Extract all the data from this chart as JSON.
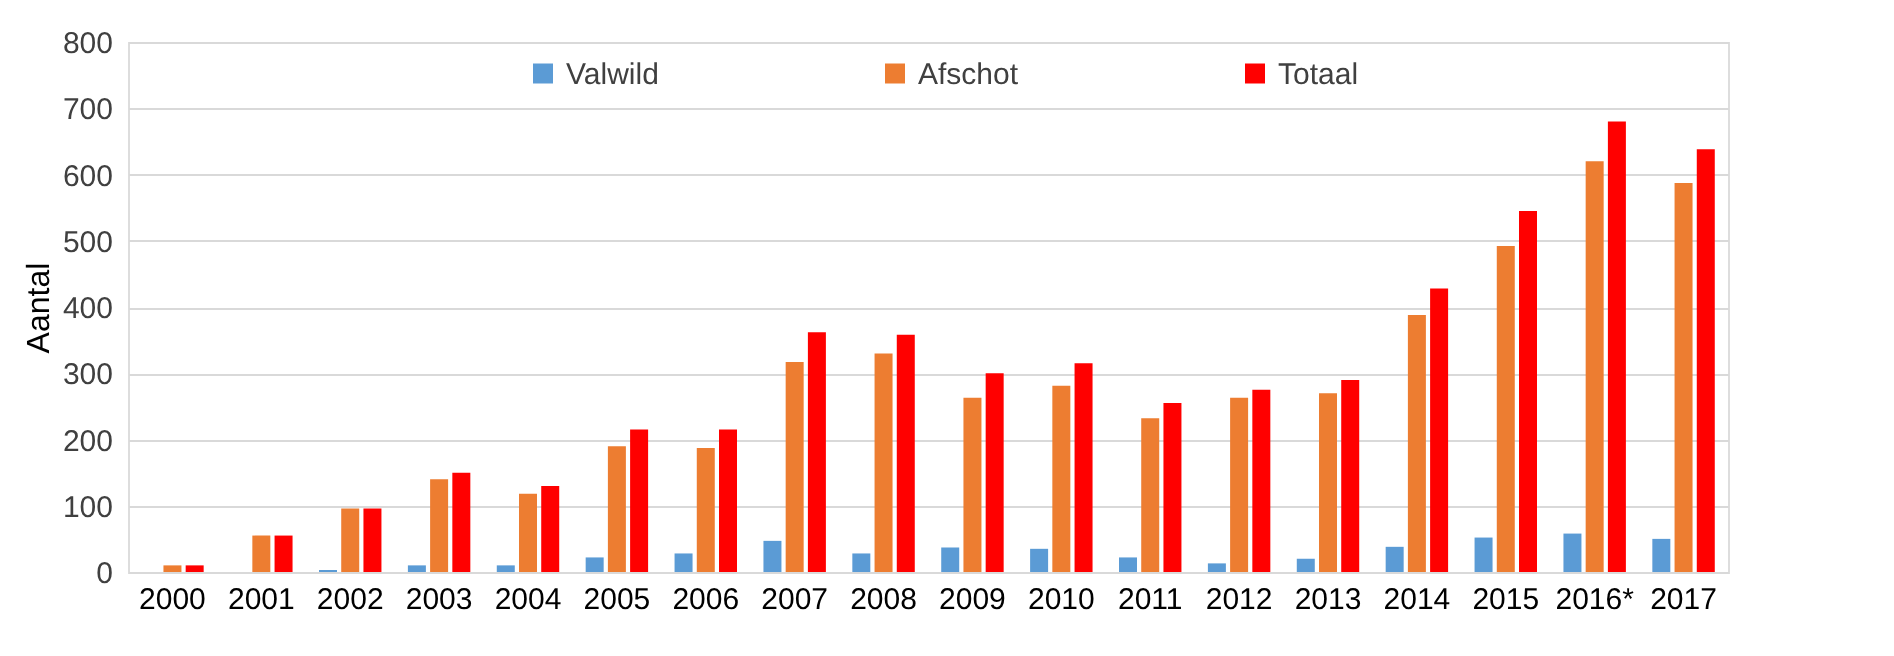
{
  "chart_data": {
    "type": "bar",
    "ylabel": "Aantal",
    "categories": [
      "2000",
      "2001",
      "2002",
      "2003",
      "2004",
      "2005",
      "2006",
      "2007",
      "2008",
      "2009",
      "2010",
      "2011",
      "2012",
      "2013",
      "2014",
      "2015",
      "2016*",
      "2017"
    ],
    "series": [
      {
        "name": "Valwild",
        "color": "#5b9bd5",
        "values": [
          0,
          0,
          3,
          10,
          10,
          22,
          28,
          47,
          28,
          37,
          35,
          22,
          13,
          20,
          38,
          52,
          58,
          50
        ]
      },
      {
        "name": "Afschot",
        "color": "#ed7d31",
        "values": [
          10,
          55,
          96,
          140,
          118,
          190,
          187,
          317,
          330,
          263,
          281,
          232,
          263,
          270,
          388,
          492,
          620,
          587
        ]
      },
      {
        "name": "Totaal",
        "color": "#ff0000",
        "values": [
          10,
          55,
          96,
          150,
          130,
          215,
          215,
          362,
          358,
          300,
          315,
          255,
          275,
          290,
          428,
          545,
          680,
          638
        ]
      }
    ],
    "ylim": [
      0,
      800
    ],
    "yticks": [
      0,
      100,
      200,
      300,
      400,
      500,
      600,
      700,
      800
    ],
    "grid": "y",
    "legend": "top"
  }
}
